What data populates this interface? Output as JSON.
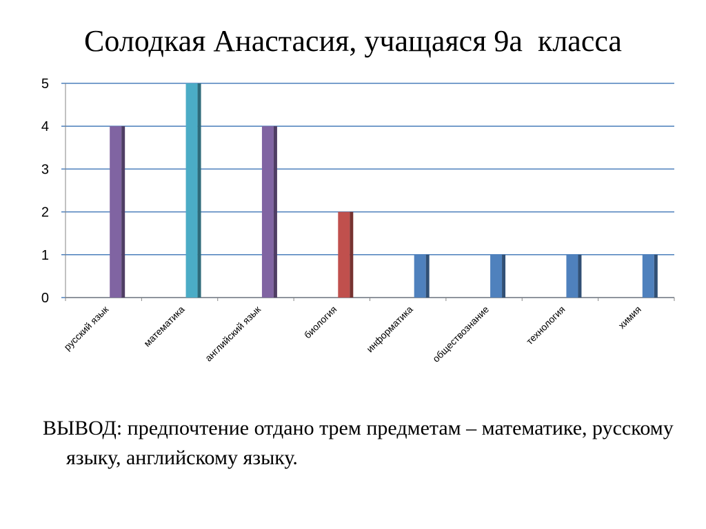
{
  "slide": {
    "title": "Солодкая Анастасия, учащаяся 9а  класса",
    "conclusion_label": "ВЫВОД",
    "conclusion_text": ": предпочтение отдано трем предметам – математике, русскому языку, английскому языку."
  },
  "chart_data": {
    "type": "bar",
    "categories": [
      "русский язык",
      "математика",
      "английский язык",
      "биология",
      "информатика",
      "обществознание",
      "технология",
      "химия"
    ],
    "series": [
      {
        "values": [
          4,
          null,
          4,
          null,
          null,
          null,
          null,
          null
        ],
        "color": "#8064a2"
      },
      {
        "values": [
          null,
          5,
          null,
          null,
          null,
          null,
          null,
          null
        ],
        "color": "#4bacc6"
      },
      {
        "values": [
          null,
          null,
          null,
          2,
          null,
          null,
          null,
          null
        ],
        "color": "#c0504d"
      },
      {
        "values": [
          null,
          null,
          null,
          null,
          1,
          1,
          1,
          1
        ],
        "color": "#4f81bd"
      }
    ],
    "ylim": [
      0,
      5
    ],
    "yticks": [
      0,
      1,
      2,
      3,
      4,
      5
    ],
    "grid": true,
    "gridline_color": "#4a7ebb",
    "xlabel": "",
    "ylabel": ""
  }
}
